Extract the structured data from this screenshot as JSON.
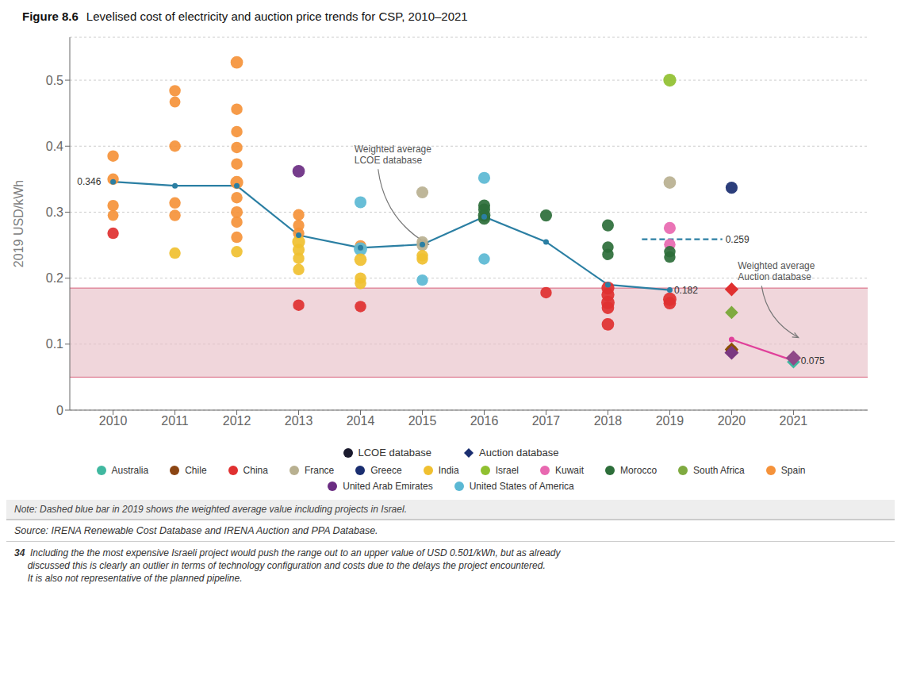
{
  "chart_data": {
    "type": "scatter",
    "title": "Figure 8.6",
    "subtitle": "Levelised cost of electricity and auction price trends for CSP, 2010–2021",
    "ylabel": "2019 USD/kWh",
    "xlim": [
      2009.3,
      2022.2
    ],
    "xticks": [
      2010,
      2011,
      2012,
      2013,
      2014,
      2015,
      2016,
      2017,
      2018,
      2019,
      2020,
      2021
    ],
    "ylim": [
      0,
      0.565
    ],
    "yticks": [
      0,
      0.1,
      0.2,
      0.3,
      0.4,
      0.5
    ],
    "grid": true,
    "band": {
      "low": 0.05,
      "high": 0.185,
      "color": "#e8c0c8",
      "line_color": "#d04060"
    },
    "series": [
      {
        "name": "LCOE database",
        "type": "scatter",
        "marker": "circle",
        "color": "#1a1a2e",
        "x": [
          2010,
          2010,
          2010,
          2010,
          2010,
          2011,
          2011,
          2011,
          2011,
          2011,
          2011,
          2012,
          2012,
          2012,
          2012,
          2012,
          2012,
          2012,
          2012,
          2012,
          2012,
          2012,
          2013,
          2013,
          2013,
          2013,
          2013,
          2013,
          2013,
          2013,
          2013,
          2014,
          2014,
          2014,
          2014,
          2014,
          2014,
          2014,
          2015,
          2015,
          2015,
          2015,
          2015,
          2015,
          2016,
          2016,
          2016,
          2016,
          2016,
          2016,
          2017,
          2017,
          2018,
          2018,
          2018,
          2018,
          2018,
          2018,
          2018,
          2018,
          2019,
          2019,
          2019,
          2019,
          2019,
          2019,
          2019,
          2019,
          2020,
          2020
        ],
        "values": [
          0.385,
          0.35,
          0.31,
          0.295,
          0.268,
          0.484,
          0.467,
          0.4,
          0.314,
          0.295,
          0.238,
          0.527,
          0.456,
          0.422,
          0.398,
          0.373,
          0.345,
          0.322,
          0.3,
          0.285,
          0.262,
          0.24,
          0.362,
          0.296,
          0.28,
          0.268,
          0.255,
          0.243,
          0.23,
          0.213,
          0.159,
          0.315,
          0.249,
          0.244,
          0.228,
          0.2,
          0.192,
          0.157,
          0.33,
          0.255,
          0.25,
          0.234,
          0.229,
          0.197,
          0.352,
          0.31,
          0.304,
          0.295,
          0.29,
          0.229,
          0.295,
          0.178,
          0.28,
          0.247,
          0.236,
          0.185,
          0.175,
          0.163,
          0.155,
          0.13,
          0.5,
          0.345,
          0.276,
          0.251,
          0.24,
          0.232,
          0.168,
          0.162,
          0.337,
          0.09
        ],
        "colors": [
          "#f5923a",
          "#f5923a",
          "#f5923a",
          "#f5923a",
          "#e03030",
          "#f5923a",
          "#f5923a",
          "#f5923a",
          "#f5923a",
          "#f5923a",
          "#f0c030",
          "#f5923a",
          "#f5923a",
          "#f5923a",
          "#f5923a",
          "#f5923a",
          "#f5923a",
          "#f5923a",
          "#f5923a",
          "#f5923a",
          "#f5923a",
          "#f0c030",
          "#6a2c82",
          "#f5923a",
          "#f5923a",
          "#f5923a",
          "#f0c030",
          "#f0c030",
          "#f0c030",
          "#f0c030",
          "#e03030",
          "#5bb8d4",
          "#f5923a",
          "#5bb8d4",
          "#f0c030",
          "#f0c030",
          "#f0c030",
          "#e03030",
          "#b8b090",
          "#b8b090",
          "#b8b090",
          "#f0c030",
          "#f0c030",
          "#5bb8d4",
          "#5bb8d4",
          "#2d6e3a",
          "#2d6e3a",
          "#2d6e3a",
          "#2d6e3a",
          "#5bb8d4",
          "#2d6e3a",
          "#e03030",
          "#2d6e3a",
          "#2d6e3a",
          "#2d6e3a",
          "#e03030",
          "#e03030",
          "#e03030",
          "#e03030",
          "#e03030",
          "#90c030",
          "#b8b090",
          "#e868b0",
          "#e868b0",
          "#2d6e3a",
          "#2d6e3a",
          "#e03030",
          "#e03030",
          "#1a2e70",
          "#8B4513"
        ],
        "sizes": [
          110,
          110,
          110,
          100,
          110,
          110,
          100,
          110,
          110,
          110,
          110,
          130,
          110,
          110,
          110,
          110,
          140,
          110,
          120,
          110,
          110,
          110,
          130,
          110,
          110,
          110,
          140,
          120,
          110,
          110,
          110,
          120,
          110,
          150,
          130,
          110,
          110,
          110,
          120,
          110,
          110,
          110,
          110,
          110,
          120,
          120,
          120,
          130,
          120,
          110,
          120,
          110,
          120,
          110,
          110,
          140,
          140,
          150,
          130,
          130,
          140,
          130,
          120,
          110,
          110,
          110,
          150,
          130,
          120,
          120
        ]
      },
      {
        "type": "line",
        "marker": "circle",
        "line_style": "solid",
        "color": "#2b7fa3",
        "x": [
          2010,
          2011,
          2012,
          2013,
          2014,
          2015,
          2016,
          2017,
          2018,
          2019
        ],
        "values": [
          0.346,
          0.34,
          0.34,
          0.265,
          0.246,
          0.251,
          0.293,
          0.255,
          0.19,
          0.182
        ]
      },
      {
        "type": "line",
        "marker": "none",
        "line_style": "dashed",
        "color": "#2b7fa3",
        "x": [
          2018.55,
          2019.85
        ],
        "values": [
          0.259,
          0.259
        ]
      },
      {
        "type": "line",
        "marker": "circle",
        "line_style": "solid",
        "color": "#e0409a",
        "x": [
          2020,
          2021
        ],
        "values": [
          0.107,
          0.075
        ]
      },
      {
        "name": "Auction database",
        "type": "scatter",
        "marker": "diamond",
        "color": "#1a2e70",
        "x": [
          2020,
          2020,
          2020,
          2020,
          2021,
          2021
        ],
        "values": [
          0.183,
          0.148,
          0.092,
          0.087,
          0.073,
          0.079
        ],
        "colors": [
          "#e03030",
          "#7faa40",
          "#8B5000",
          "#7a3880",
          "#40b8a0",
          "#904888"
        ],
        "sizes": [
          130,
          120,
          130,
          140,
          120,
          160
        ]
      }
    ],
    "countries": [
      {
        "name": "Australia",
        "color": "#40b8a0"
      },
      {
        "name": "Chile",
        "color": "#8B4513"
      },
      {
        "name": "China",
        "color": "#e03030"
      },
      {
        "name": "France",
        "color": "#b8b090"
      },
      {
        "name": "Greece",
        "color": "#1a2e70"
      },
      {
        "name": "India",
        "color": "#f0c030"
      },
      {
        "name": "Israel",
        "color": "#90c030"
      },
      {
        "name": "Kuwait",
        "color": "#e868b0"
      },
      {
        "name": "Morocco",
        "color": "#2d6e3a"
      },
      {
        "name": "South Africa",
        "color": "#7faa40"
      },
      {
        "name": "Spain",
        "color": "#f5923a"
      },
      {
        "name": "United Arab Emirates",
        "color": "#6a2c82"
      },
      {
        "name": "United States of America",
        "color": "#5bb8d4"
      }
    ],
    "annotations": [
      {
        "text": "0.346",
        "x": 2009.42,
        "y": 0.346
      },
      {
        "text": "0.259",
        "x": 2019.9,
        "y": 0.259
      },
      {
        "text": "0.182",
        "x": 2019.07,
        "y": 0.182
      },
      {
        "text": "0.075",
        "x": 2021.12,
        "y": 0.075
      },
      {
        "text": "Weighted average\nLCOE database",
        "x": 2013.9,
        "y": 0.37,
        "arrow_to": [
          2015.1,
          0.251
        ]
      },
      {
        "text": "Weighted average\nAuction database",
        "x": 2020.1,
        "y": 0.193,
        "arrow_to": [
          2021.08,
          0.11
        ]
      }
    ],
    "note": "Note: Dashed blue bar in 2019 shows the weighted average value including projects in Israel.",
    "source": "Source: IRENA Renewable Cost Database and IRENA Auction and PPA Database.",
    "footnote": {
      "number": "34",
      "text": "  Including the the most expensive Israeli project would push the range out to an upper value of USD 0.501/kWh, but as already\n     discussed this is clearly an outlier in terms of technology configuration and costs due to the delays the project encountered.\n     It is also not representative of the planned pipeline."
    }
  }
}
